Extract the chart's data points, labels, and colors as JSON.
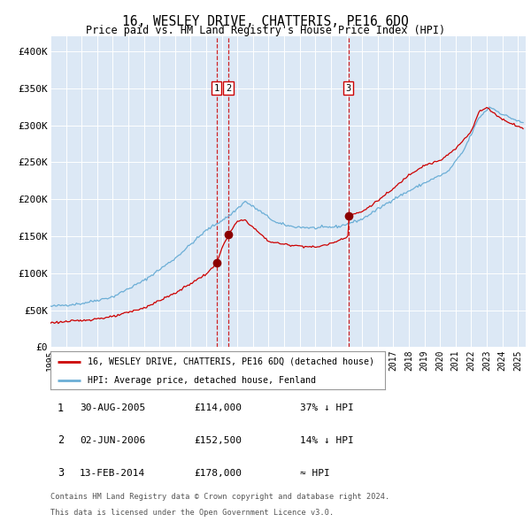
{
  "title": "16, WESLEY DRIVE, CHATTERIS, PE16 6DQ",
  "subtitle": "Price paid vs. HM Land Registry's House Price Index (HPI)",
  "hpi_label": "HPI: Average price, detached house, Fenland",
  "price_label": "16, WESLEY DRIVE, CHATTERIS, PE16 6DQ (detached house)",
  "xmin": 1995.0,
  "xmax": 2025.5,
  "ymin": 0,
  "ymax": 420000,
  "yticks": [
    0,
    50000,
    100000,
    150000,
    200000,
    250000,
    300000,
    350000,
    400000
  ],
  "ytick_labels": [
    "£0",
    "£50K",
    "£100K",
    "£150K",
    "£200K",
    "£250K",
    "£300K",
    "£350K",
    "£400K"
  ],
  "plot_bg_color": "#dce8f5",
  "transactions": [
    {
      "num": 1,
      "date": "30-AUG-2005",
      "year": 2005.66,
      "price": 114000,
      "label": "37% ↓ HPI"
    },
    {
      "num": 2,
      "date": "02-JUN-2006",
      "year": 2006.42,
      "price": 152500,
      "label": "14% ↓ HPI"
    },
    {
      "num": 3,
      "date": "13-FEB-2014",
      "year": 2014.12,
      "price": 178000,
      "label": "≈ HPI"
    }
  ],
  "footnote1": "Contains HM Land Registry data © Crown copyright and database right 2024.",
  "footnote2": "This data is licensed under the Open Government Licence v3.0.",
  "hpi_color": "#6baed6",
  "price_color": "#cc0000",
  "vline_color": "#cc0000",
  "marker_color": "#8b0000",
  "hpi_keypoints": [
    [
      1995.0,
      55000
    ],
    [
      1997.0,
      59000
    ],
    [
      1999.0,
      68000
    ],
    [
      2001.0,
      90000
    ],
    [
      2003.0,
      120000
    ],
    [
      2005.0,
      158000
    ],
    [
      2006.5,
      178000
    ],
    [
      2007.5,
      197000
    ],
    [
      2008.5,
      183000
    ],
    [
      2009.5,
      168000
    ],
    [
      2010.5,
      163000
    ],
    [
      2012.0,
      161000
    ],
    [
      2013.5,
      163000
    ],
    [
      2015.0,
      173000
    ],
    [
      2017.0,
      200000
    ],
    [
      2019.0,
      222000
    ],
    [
      2020.5,
      237000
    ],
    [
      2021.5,
      265000
    ],
    [
      2022.5,
      310000
    ],
    [
      2023.2,
      325000
    ],
    [
      2024.0,
      315000
    ],
    [
      2025.3,
      303000
    ]
  ],
  "price_keypoints": [
    [
      1995.0,
      33000
    ],
    [
      1997.0,
      36000
    ],
    [
      1999.0,
      41000
    ],
    [
      2001.0,
      53000
    ],
    [
      2003.0,
      73000
    ],
    [
      2005.0,
      99000
    ],
    [
      2005.65,
      112000
    ],
    [
      2005.67,
      114000
    ],
    [
      2006.0,
      134000
    ],
    [
      2006.4,
      150000
    ],
    [
      2006.42,
      152500
    ],
    [
      2007.0,
      170000
    ],
    [
      2007.5,
      172000
    ],
    [
      2008.0,
      162000
    ],
    [
      2009.0,
      143000
    ],
    [
      2010.0,
      139000
    ],
    [
      2011.0,
      137000
    ],
    [
      2012.0,
      135000
    ],
    [
      2013.0,
      140000
    ],
    [
      2014.0,
      149000
    ],
    [
      2014.11,
      151000
    ],
    [
      2014.12,
      178000
    ],
    [
      2015.0,
      183000
    ],
    [
      2016.0,
      198000
    ],
    [
      2017.0,
      214000
    ],
    [
      2018.0,
      233000
    ],
    [
      2019.0,
      246000
    ],
    [
      2020.0,
      252000
    ],
    [
      2021.0,
      268000
    ],
    [
      2022.0,
      292000
    ],
    [
      2022.5,
      318000
    ],
    [
      2023.0,
      324000
    ],
    [
      2023.5,
      316000
    ],
    [
      2024.0,
      308000
    ],
    [
      2025.3,
      296000
    ]
  ]
}
